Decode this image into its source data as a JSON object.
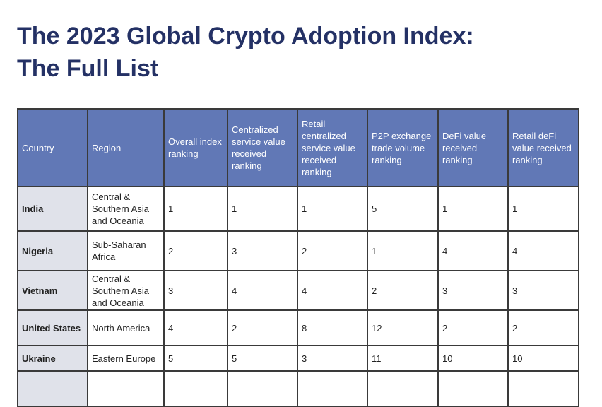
{
  "title": {
    "line1": "The 2023 Global Crypto Adoption Index:",
    "line2": "The Full List"
  },
  "table": {
    "header": [
      "Country",
      "Region",
      "Overall index ranking",
      "Centralized service value received ranking",
      "Retail centralized service value received ranking",
      "P2P exchange trade volume ranking",
      "DeFi value received ranking",
      "Retail deFi value received ranking"
    ],
    "rows": [
      [
        "India",
        "Central & Southern Asia and Oceania",
        "1",
        "1",
        "1",
        "5",
        "1",
        "1"
      ],
      [
        "Nigeria",
        "Sub-Saharan Africa",
        "2",
        "3",
        "2",
        "1",
        "4",
        "4"
      ],
      [
        "Vietnam",
        "Central & Southern Asia and Oceania",
        "3",
        "4",
        "4",
        "2",
        "3",
        "3"
      ],
      [
        "United States",
        "North America",
        "4",
        "2",
        "8",
        "12",
        "2",
        "2"
      ],
      [
        "Ukraine",
        "Eastern Europe",
        "5",
        "5",
        "3",
        "11",
        "10",
        "10"
      ]
    ]
  }
}
